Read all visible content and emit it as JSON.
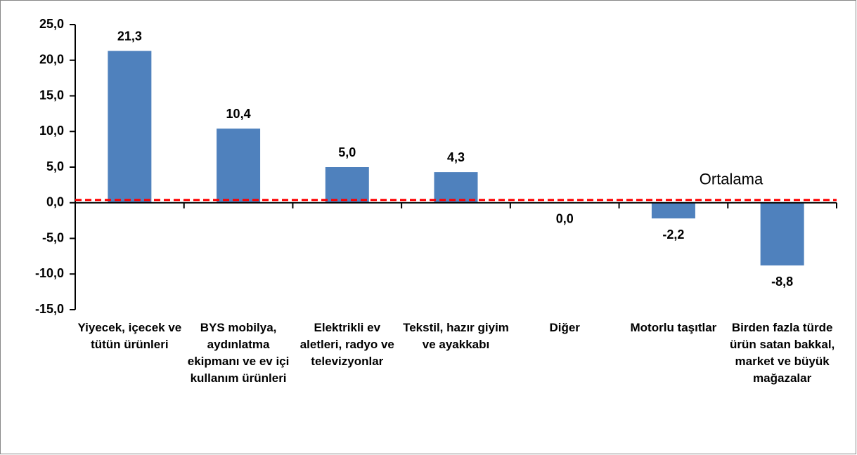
{
  "chart_data": {
    "type": "bar",
    "categories": [
      "Yiyecek, içecek ve tütün ürünleri",
      "BYS mobilya, aydınlatma ekipmanı ve ev içi kullanım ürünleri",
      "Elektrikli ev aletleri, radyo ve televizyonlar",
      "Tekstil, hazır giyim ve ayakkabı",
      "Diğer",
      "Motorlu taşıtlar",
      "Birden fazla türde ürün satan bakkal, market ve büyük mağazalar"
    ],
    "values": [
      21.3,
      10.4,
      5.0,
      4.3,
      0.0,
      -2.2,
      -8.8
    ],
    "value_labels": [
      "21,3",
      "10,4",
      "5,0",
      "4,3",
      "0,0",
      "-2,2",
      "-8,8"
    ],
    "color": "#4f81bd",
    "ylim": [
      -15,
      25
    ],
    "yticks": [
      {
        "value": -15,
        "label": "-15,0"
      },
      {
        "value": -10,
        "label": "-10,0"
      },
      {
        "value": -5,
        "label": "-5,0"
      },
      {
        "value": 0,
        "label": "0,0"
      },
      {
        "value": 5,
        "label": "5,0"
      },
      {
        "value": 10,
        "label": "10,0"
      },
      {
        "value": 15,
        "label": "15,0"
      },
      {
        "value": 20,
        "label": "20,0"
      },
      {
        "value": 25,
        "label": "25,0"
      }
    ],
    "grid": false,
    "reference_line": {
      "value": 0.4,
      "label": "Ortalama",
      "color": "#ff0000"
    }
  }
}
